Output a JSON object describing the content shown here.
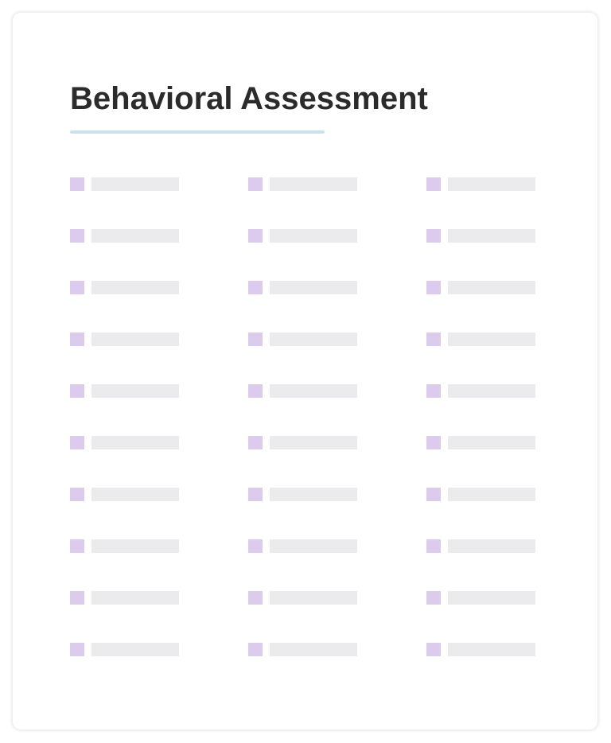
{
  "document": {
    "title": "Behavioral Assessment",
    "colors": {
      "title": "#2b2b2b",
      "underline": "#c8e3ef",
      "checkbox": "#dccbec",
      "placeholder_bar": "#ebebed"
    },
    "checklist": {
      "columns": 3,
      "rows": 10,
      "item_type": "checkbox-with-placeholder-text"
    }
  }
}
